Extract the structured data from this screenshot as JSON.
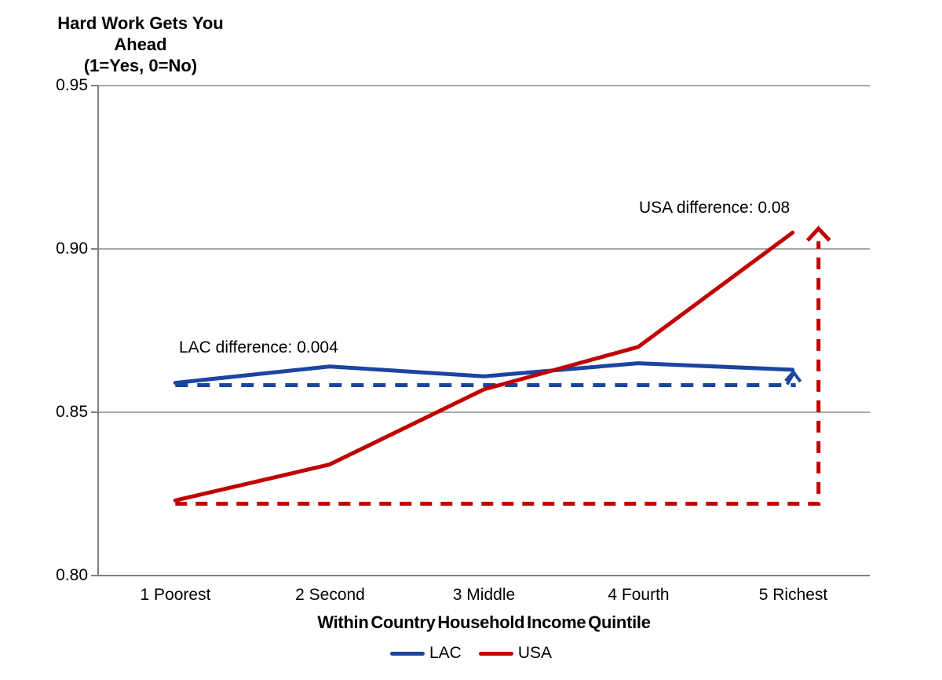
{
  "chart_data": {
    "type": "line",
    "title": "Hard Work Gets You Ahead (1=Yes, 0=No)",
    "title_lines": [
      "Hard Work Gets You",
      "Ahead",
      "(1=Yes, 0=No)"
    ],
    "xlabel": "Within Country Household Income Quintile",
    "ylabel": "",
    "categories": [
      "1 Poorest",
      "2 Second",
      "3 Middle",
      "4 Fourth",
      "5 Richest"
    ],
    "series": [
      {
        "name": "LAC",
        "color": "#1A45A0",
        "values": [
          0.859,
          0.864,
          0.861,
          0.865,
          0.863
        ]
      },
      {
        "name": "USA",
        "color": "#C00000",
        "values": [
          0.823,
          0.834,
          0.857,
          0.87,
          0.905
        ]
      }
    ],
    "ylim": [
      0.8,
      0.95
    ],
    "ytick_labels": [
      "0.95",
      "0.90",
      "0.85",
      "0.80"
    ],
    "grid": "horizontal",
    "legend_position": "bottom",
    "reference_lines": [
      {
        "series": "LAC",
        "style": "dashed",
        "from_value": 0.859,
        "arrow_to_value": 0.863
      },
      {
        "series": "USA",
        "style": "dashed",
        "from_value": 0.822,
        "arrow_to_value": 0.905
      }
    ],
    "annotations": [
      {
        "id": "lac-difference",
        "text": "LAC difference: 0.004"
      },
      {
        "id": "usa-difference",
        "text": "USA difference: 0.08"
      }
    ],
    "colors": {
      "gridline": "#8C8C8C",
      "axis": "#7F7F7F",
      "text": "#000000"
    }
  },
  "legend": {
    "items": [
      {
        "label": "LAC",
        "color": "#1A45A0"
      },
      {
        "label": "USA",
        "color": "#C00000"
      }
    ]
  }
}
